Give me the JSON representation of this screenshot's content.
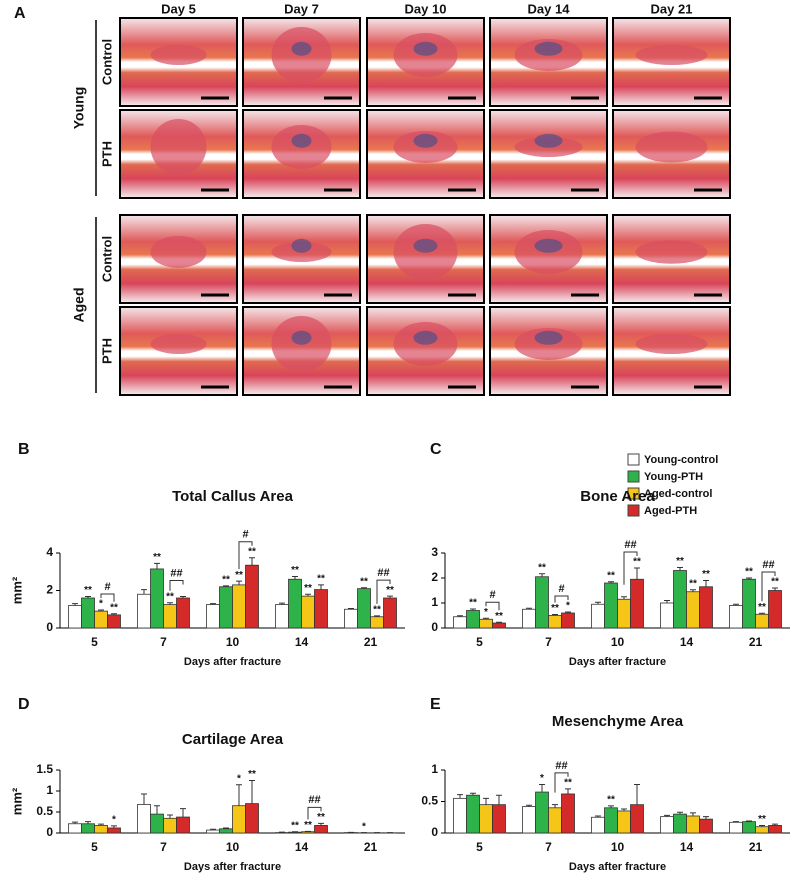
{
  "panel_a": {
    "label": "A",
    "columns": [
      "Day 5",
      "Day 7",
      "Day 10",
      "Day 14",
      "Day 21"
    ],
    "groups": [
      {
        "name": "Young",
        "rows": [
          "Control",
          "PTH"
        ]
      },
      {
        "name": "Aged",
        "rows": [
          "Control",
          "PTH"
        ]
      }
    ]
  },
  "legend": [
    {
      "name": "Young-control",
      "color": "#ffffff"
    },
    {
      "name": "Young-PTH",
      "color": "#2db34a"
    },
    {
      "name": "Aged-control",
      "color": "#f5c518"
    },
    {
      "name": "Aged-PTH",
      "color": "#d42a2a"
    }
  ],
  "chart_data": [
    {
      "type": "bar",
      "label": "B",
      "title": "Total Callus Area",
      "y_label": "mm²",
      "x_label": "Days after fracture",
      "categories": [
        "5",
        "7",
        "10",
        "14",
        "21"
      ],
      "ylim": [
        0,
        4
      ],
      "yticks": [
        0,
        2,
        4
      ],
      "series": [
        {
          "values": [
            1.2,
            1.8,
            1.25,
            1.25,
            1.0
          ],
          "errors": [
            0.1,
            0.25,
            0.05,
            0.08,
            0.04
          ],
          "annotations": [
            null,
            null,
            null,
            null,
            null
          ]
        },
        {
          "values": [
            1.6,
            3.15,
            2.2,
            2.6,
            2.1
          ],
          "errors": [
            0.08,
            0.3,
            0.05,
            0.15,
            0.05
          ],
          "annotations": [
            "**",
            "**",
            "**",
            "**",
            "**"
          ]
        },
        {
          "values": [
            0.9,
            1.25,
            2.3,
            1.7,
            0.6
          ],
          "errors": [
            0.06,
            0.1,
            0.2,
            0.1,
            0.05
          ],
          "annotations": [
            "*",
            "**",
            "**",
            "**",
            "**"
          ]
        },
        {
          "values": [
            0.7,
            1.6,
            3.35,
            2.05,
            1.6
          ],
          "errors": [
            0.06,
            0.08,
            0.4,
            0.25,
            0.1
          ],
          "annotations": [
            "**",
            null,
            "**",
            "**",
            "**"
          ]
        }
      ],
      "brackets": [
        {
          "category": "5",
          "label": "#"
        },
        {
          "category": "7",
          "label": "##"
        },
        {
          "category": "10",
          "label": "#"
        },
        {
          "category": "21",
          "label": "##"
        }
      ]
    },
    {
      "type": "bar",
      "label": "C",
      "title": "Bone Area",
      "x_label": "Days after fracture",
      "categories": [
        "5",
        "7",
        "10",
        "14",
        "21"
      ],
      "ylim": [
        0,
        3
      ],
      "yticks": [
        0,
        1,
        2,
        3
      ],
      "legend": "top-right",
      "series": [
        {
          "values": [
            0.45,
            0.75,
            0.95,
            1.0,
            0.9
          ],
          "errors": [
            0.04,
            0.04,
            0.08,
            0.1,
            0.05
          ],
          "annotations": [
            null,
            null,
            null,
            null,
            null
          ]
        },
        {
          "values": [
            0.7,
            2.05,
            1.8,
            2.3,
            1.95
          ],
          "errors": [
            0.06,
            0.12,
            0.05,
            0.12,
            0.05
          ],
          "annotations": [
            "**",
            "**",
            "**",
            "**",
            "**"
          ]
        },
        {
          "values": [
            0.35,
            0.5,
            1.15,
            1.45,
            0.55
          ],
          "errors": [
            0.04,
            0.04,
            0.1,
            0.08,
            0.04
          ],
          "annotations": [
            "*",
            "**",
            null,
            "**",
            "**"
          ]
        },
        {
          "values": [
            0.2,
            0.6,
            1.95,
            1.65,
            1.5
          ],
          "errors": [
            0.03,
            0.04,
            0.45,
            0.25,
            0.1
          ],
          "annotations": [
            "**",
            "*",
            "**",
            "**",
            "**"
          ]
        }
      ],
      "brackets": [
        {
          "category": "5",
          "label": "#"
        },
        {
          "category": "7",
          "label": "#"
        },
        {
          "category": "10",
          "label": "##"
        },
        {
          "category": "21",
          "label": "##"
        }
      ]
    },
    {
      "type": "bar",
      "label": "D",
      "title": "Cartilage Area",
      "y_label": "mm²",
      "x_label": "Days after fracture",
      "categories": [
        "5",
        "7",
        "10",
        "14",
        "21"
      ],
      "ylim": [
        0,
        1.5
      ],
      "yticks": [
        0,
        0.5,
        1,
        1.5
      ],
      "series": [
        {
          "values": [
            0.22,
            0.68,
            0.07,
            0.01,
            0.01
          ],
          "errors": [
            0.04,
            0.25,
            0.02,
            0.01,
            0.005
          ],
          "annotations": [
            null,
            null,
            null,
            null,
            null
          ]
        },
        {
          "values": [
            0.22,
            0.45,
            0.1,
            0.02,
            0.005
          ],
          "errors": [
            0.05,
            0.2,
            0.02,
            0.01,
            0.003
          ],
          "annotations": [
            null,
            null,
            null,
            "**",
            "*"
          ]
        },
        {
          "values": [
            0.18,
            0.35,
            0.65,
            0.03,
            0.005
          ],
          "errors": [
            0.03,
            0.08,
            0.5,
            0.01,
            0.003
          ],
          "annotations": [
            null,
            null,
            "*",
            "**",
            null
          ]
        },
        {
          "values": [
            0.12,
            0.38,
            0.7,
            0.18,
            0.005
          ],
          "errors": [
            0.05,
            0.2,
            0.55,
            0.05,
            0.003
          ],
          "annotations": [
            "*",
            null,
            "**",
            "**",
            null
          ]
        }
      ],
      "brackets": [
        {
          "category": "14",
          "label": "##"
        }
      ]
    },
    {
      "type": "bar",
      "label": "E",
      "title": "Mesenchyme Area",
      "x_label": "Days after fracture",
      "categories": [
        "5",
        "7",
        "10",
        "14",
        "21"
      ],
      "ylim": [
        0,
        1
      ],
      "yticks": [
        0,
        0.5,
        1
      ],
      "series": [
        {
          "values": [
            0.55,
            0.42,
            0.25,
            0.26,
            0.17
          ],
          "errors": [
            0.06,
            0.02,
            0.02,
            0.02,
            0.01
          ],
          "annotations": [
            null,
            null,
            null,
            null,
            null
          ]
        },
        {
          "values": [
            0.6,
            0.65,
            0.4,
            0.3,
            0.18
          ],
          "errors": [
            0.03,
            0.12,
            0.03,
            0.03,
            0.01
          ],
          "annotations": [
            null,
            "*",
            "**",
            null,
            null
          ]
        },
        {
          "values": [
            0.45,
            0.4,
            0.35,
            0.27,
            0.1
          ],
          "errors": [
            0.1,
            0.05,
            0.03,
            0.05,
            0.02
          ],
          "annotations": [
            null,
            null,
            null,
            null,
            "**"
          ]
        },
        {
          "values": [
            0.45,
            0.62,
            0.45,
            0.22,
            0.12
          ],
          "errors": [
            0.15,
            0.08,
            0.32,
            0.04,
            0.02
          ],
          "annotations": [
            null,
            "**",
            null,
            null,
            null
          ]
        }
      ],
      "brackets": [
        {
          "category": "7",
          "label": "##"
        }
      ]
    }
  ]
}
